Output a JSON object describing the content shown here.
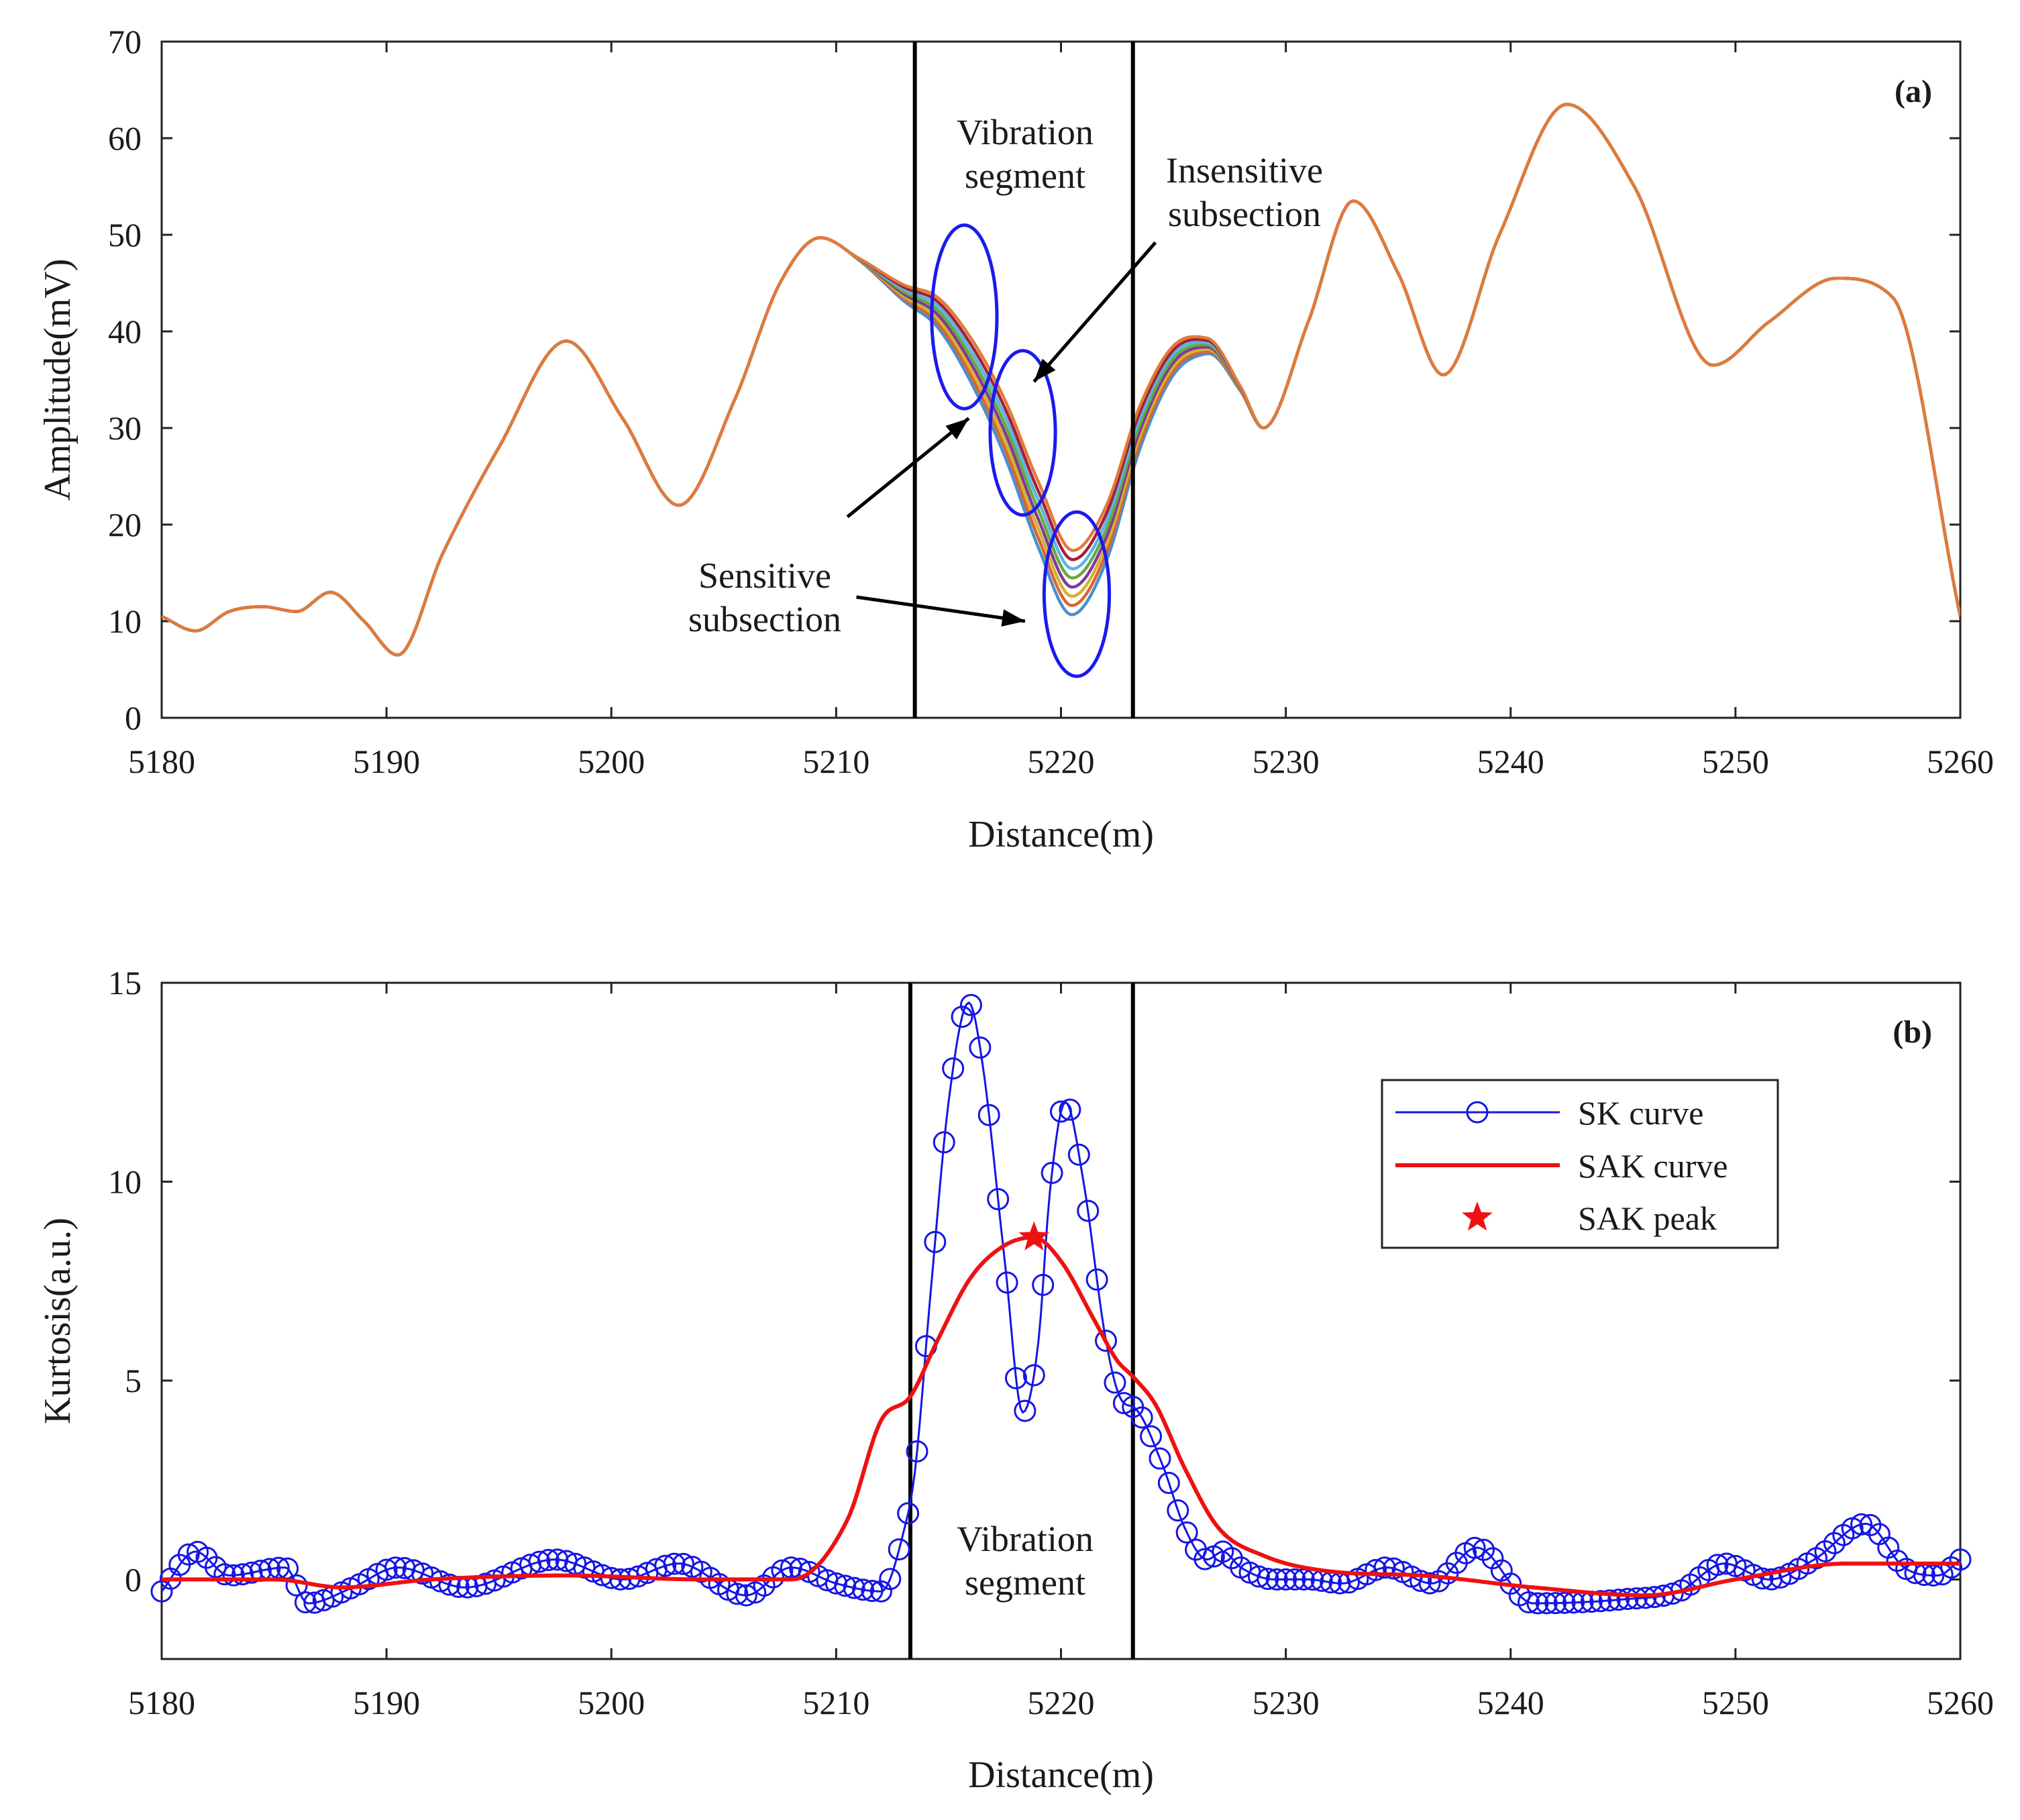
{
  "colors": {
    "amplitude_palette": [
      "#4a8fcf",
      "#d9662f",
      "#d4b22e",
      "#7d3b9b",
      "#6aa83e",
      "#56b6e4",
      "#a3203a",
      "#e07b39"
    ],
    "sk": "#1515e6",
    "sak": "#ee1111",
    "ellipse": "#1a1aee",
    "black": "#000000"
  },
  "chart_data": [
    {
      "id": "a",
      "type": "line",
      "panel_tag": "(a)",
      "xlabel": "Distance(m)",
      "ylabel": "Amplitude(mV)",
      "xlim": [
        5180,
        5260
      ],
      "ylim": [
        0,
        70
      ],
      "xticks": [
        5180,
        5190,
        5200,
        5210,
        5220,
        5230,
        5240,
        5250,
        5260
      ],
      "yticks": [
        0,
        10,
        20,
        30,
        40,
        50,
        60,
        70
      ],
      "vertical_lines": [
        5213.5,
        5223.2
      ],
      "base_curve": {
        "x": [
          5180,
          5181.5,
          5183,
          5184.5,
          5186,
          5187.5,
          5189,
          5190.5,
          5192.5,
          5195,
          5198,
          5200.5,
          5203,
          5205.5,
          5207.5,
          5209.3,
          5211,
          5213,
          5214.5,
          5216,
          5217.5,
          5219,
          5220.5,
          5222,
          5223.5,
          5225,
          5226.5,
          5228,
          5229,
          5231,
          5233,
          5235,
          5237,
          5239.5,
          5242.5,
          5245.5,
          5249,
          5251.5,
          5254.5,
          5257,
          5260
        ],
        "y": [
          10.5,
          9,
          11,
          11.5,
          11,
          13,
          10,
          6.5,
          17,
          28,
          39,
          31,
          22,
          33,
          45,
          49.7,
          47.5,
          44,
          42,
          37,
          30,
          21,
          14,
          19,
          30,
          37,
          38.5,
          34,
          30,
          41,
          53.5,
          46,
          35.5,
          50,
          63.5,
          55,
          36.5,
          41,
          45.5,
          43.5,
          10.5
        ]
      },
      "spread_window": [
        5210.5,
        5229
      ],
      "spread_peak_x": 5219.5,
      "spread_max": 3.5,
      "series_count": 8,
      "annotations": {
        "vibration_segment_line1": "Vibration",
        "vibration_segment_line2": "segment",
        "insensitive_line1": "Insensitive",
        "insensitive_line2": "subsection",
        "sensitive_line1": "Sensitive",
        "sensitive_line2": "subsection"
      },
      "ellipses": [
        {
          "cx": 5215.7,
          "cy": 41.5,
          "rx": 1.45,
          "ry": 9.5
        },
        {
          "cx": 5218.3,
          "cy": 29.5,
          "rx": 1.45,
          "ry": 8.5
        },
        {
          "cx": 5220.7,
          "cy": 12.8,
          "rx": 1.45,
          "ry": 8.5
        }
      ],
      "arrows": [
        {
          "from": [
            5224.2,
            49.2
          ],
          "to": [
            5218.8,
            34.8
          ]
        },
        {
          "from": [
            5210.5,
            20.8
          ],
          "to": [
            5215.9,
            31.0
          ]
        },
        {
          "from": [
            5210.9,
            12.5
          ],
          "to": [
            5218.4,
            10.0
          ]
        }
      ]
    },
    {
      "id": "b",
      "type": "line",
      "panel_tag": "(b)",
      "xlabel": "Distance(m)",
      "ylabel": "Kurtosis(a.u.)",
      "xlim": [
        5180,
        5260
      ],
      "ylim": [
        -2,
        15
      ],
      "xticks": [
        5180,
        5190,
        5200,
        5210,
        5220,
        5230,
        5240,
        5250,
        5260
      ],
      "yticks": [
        0,
        5,
        10,
        15
      ],
      "vertical_lines": [
        5213.3,
        5223.2
      ],
      "annotations": {
        "vibration_segment_line1": "Vibration",
        "vibration_segment_line2": "segment"
      },
      "legend": {
        "position": "upper-right",
        "entries": [
          "SK curve",
          "SAK curve",
          "SAK peak"
        ]
      },
      "series": [
        {
          "name": "SK curve",
          "marker": "circle",
          "x": [
            5180,
            5181.5,
            5183,
            5185.5,
            5186.5,
            5188.5,
            5190.5,
            5193.5,
            5197.5,
            5200.5,
            5203,
            5206,
            5208,
            5210,
            5212,
            5213,
            5213.5,
            5214.2,
            5215,
            5215.9,
            5216.5,
            5217.5,
            5218.3,
            5219,
            5219.5,
            5220.2,
            5221,
            5222,
            5222.7,
            5223.3,
            5224.5,
            5225.5,
            5226.5,
            5227.2,
            5228,
            5229.5,
            5231,
            5232.5,
            5234.5,
            5236.5,
            5238.5,
            5241,
            5245,
            5247.5,
            5249.5,
            5251.5,
            5253.5,
            5255.8,
            5257.5,
            5259,
            5260
          ],
          "y": [
            -0.3,
            0.7,
            0.1,
            0.3,
            -0.6,
            -0.2,
            0.3,
            -0.2,
            0.5,
            0.0,
            0.4,
            -0.4,
            0.3,
            -0.1,
            -0.3,
            1.2,
            2.7,
            7.2,
            12.0,
            14.5,
            13.0,
            8.0,
            4.2,
            6.0,
            9.7,
            12.0,
            10.0,
            6.0,
            4.5,
            4.3,
            2.9,
            1.3,
            0.5,
            0.7,
            0.3,
            0.0,
            0.0,
            -0.1,
            0.3,
            -0.1,
            0.8,
            -0.6,
            -0.5,
            -0.3,
            0.4,
            0.0,
            0.5,
            1.4,
            0.3,
            0.1,
            0.5
          ]
        },
        {
          "name": "SAK curve",
          "marker": "none",
          "x": [
            5180,
            5185,
            5188,
            5192,
            5198,
            5204,
            5208,
            5210.5,
            5212,
            5213.3,
            5214.5,
            5216,
            5217.5,
            5218.8,
            5220,
            5221.5,
            5222.5,
            5223.2,
            5224.2,
            5225.5,
            5227,
            5229,
            5232,
            5236,
            5241,
            5246,
            5250,
            5255,
            5260
          ],
          "y": [
            0.0,
            0.0,
            -0.2,
            0.0,
            0.1,
            0.0,
            0.0,
            1.5,
            4.0,
            4.6,
            6.0,
            7.6,
            8.4,
            8.6,
            8.0,
            6.5,
            5.5,
            5.1,
            4.4,
            2.8,
            1.3,
            0.6,
            0.2,
            0.1,
            -0.2,
            -0.4,
            0.0,
            0.4,
            0.4
          ]
        },
        {
          "name": "SAK peak",
          "marker": "star",
          "x": [
            5218.8
          ],
          "y": [
            8.6
          ]
        }
      ]
    }
  ]
}
